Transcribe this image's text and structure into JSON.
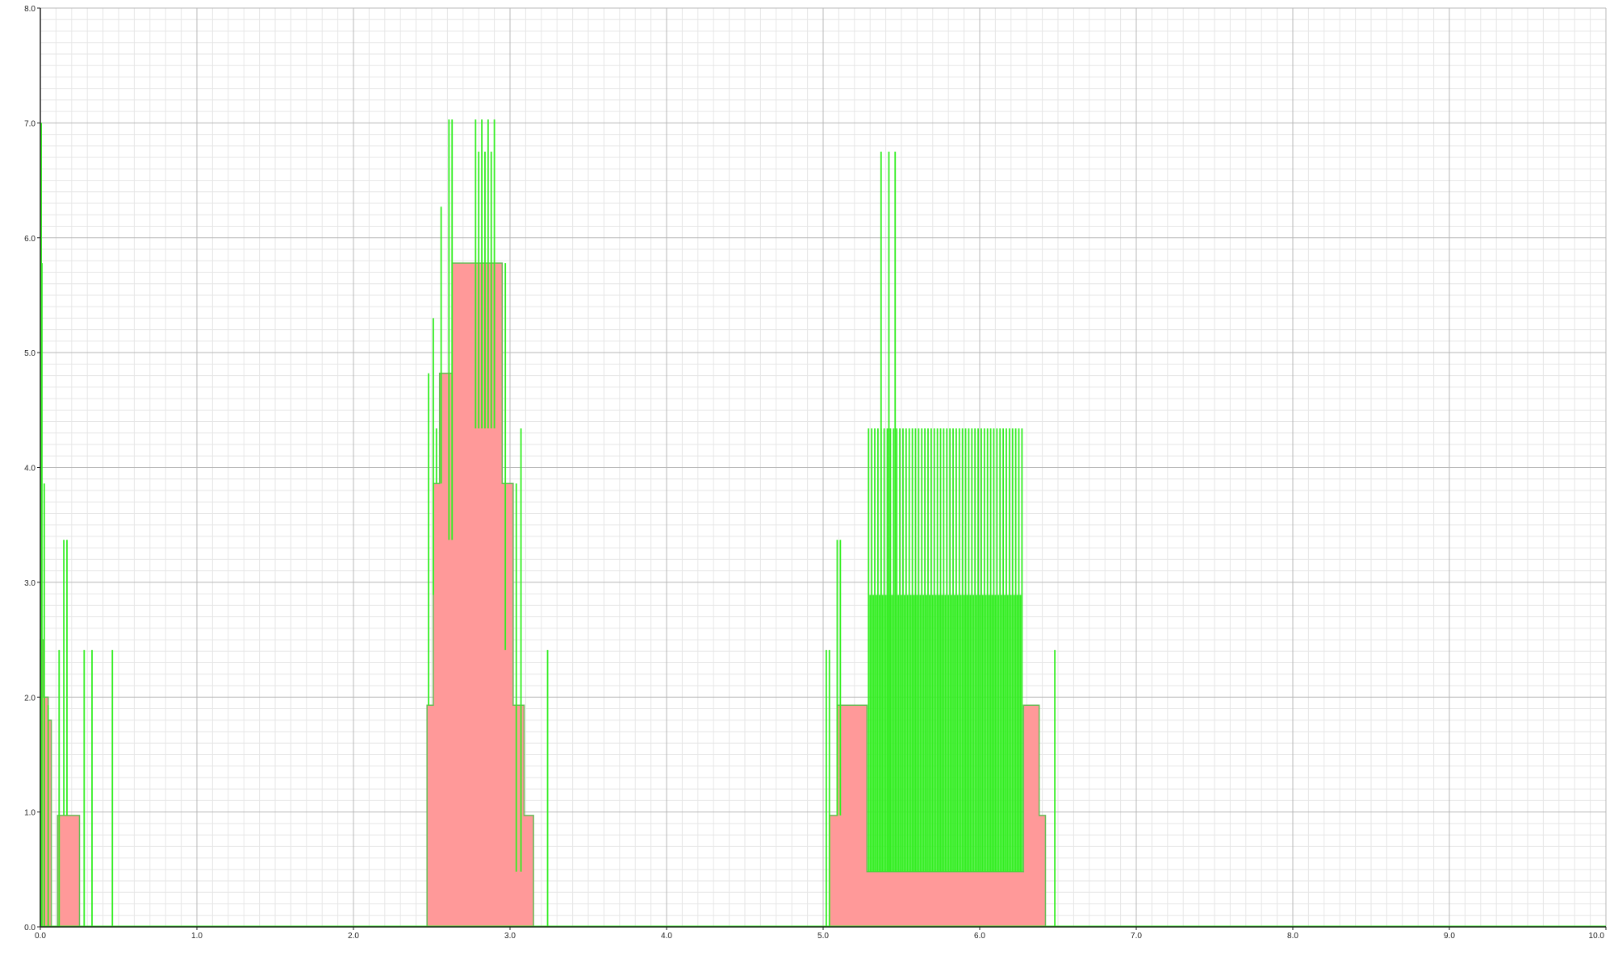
{
  "chart_data": {
    "type": "area",
    "title": "",
    "xlabel": "",
    "ylabel": "",
    "xlim": [
      0,
      10
    ],
    "ylim": [
      0,
      8
    ],
    "x_ticks": [
      "0.0",
      "1.0",
      "2.0",
      "3.0",
      "4.0",
      "5.0",
      "6.0",
      "7.0",
      "8.0",
      "9.0",
      "10.0"
    ],
    "y_ticks": [
      "0.0",
      "1.0",
      "2.0",
      "3.0",
      "4.0",
      "5.0",
      "6.0",
      "7.0",
      "8.0"
    ],
    "grid": true,
    "legend": "none",
    "series": [
      {
        "kind": "step-area",
        "color": "#ff9999",
        "stroke": "#66bb55",
        "points": [
          [
            0.0,
            2.5
          ],
          [
            0.02,
            2.0
          ],
          [
            0.05,
            1.8
          ],
          [
            0.07,
            0.0
          ],
          [
            0.11,
            0.97
          ],
          [
            0.25,
            0.0
          ],
          [
            2.47,
            1.93
          ],
          [
            2.51,
            3.86
          ],
          [
            2.55,
            4.82
          ],
          [
            2.63,
            5.78
          ],
          [
            2.95,
            3.86
          ],
          [
            3.02,
            1.93
          ],
          [
            3.09,
            0.97
          ],
          [
            3.15,
            0.0
          ],
          [
            5.04,
            0.97
          ],
          [
            5.09,
            1.93
          ],
          [
            5.28,
            0.48
          ],
          [
            6.28,
            1.93
          ],
          [
            6.38,
            0.97
          ],
          [
            6.42,
            0.0
          ],
          [
            10.0,
            0.0
          ]
        ]
      },
      {
        "kind": "spikes",
        "color": "#33ee22",
        "segments": [
          [
            0.005,
            0,
            7.0
          ],
          [
            0.01,
            0,
            5.78
          ],
          [
            0.025,
            0,
            3.86
          ],
          [
            0.05,
            0,
            1.93
          ],
          [
            0.12,
            0,
            2.41
          ],
          [
            0.15,
            0.97,
            3.37
          ],
          [
            0.17,
            0.97,
            3.37
          ],
          [
            0.28,
            0,
            2.41
          ],
          [
            0.33,
            0,
            2.41
          ],
          [
            0.46,
            0,
            2.41
          ],
          [
            2.48,
            1.93,
            4.82
          ],
          [
            2.51,
            2.89,
            5.3
          ],
          [
            2.53,
            3.86,
            4.34
          ],
          [
            2.56,
            3.86,
            6.27
          ],
          [
            2.61,
            3.37,
            7.03
          ],
          [
            2.63,
            3.37,
            7.03
          ],
          [
            2.78,
            4.34,
            7.03
          ],
          [
            2.8,
            4.34,
            6.75
          ],
          [
            2.82,
            4.34,
            7.03
          ],
          [
            2.84,
            4.34,
            6.75
          ],
          [
            2.86,
            4.34,
            7.03
          ],
          [
            2.88,
            4.34,
            6.75
          ],
          [
            2.9,
            4.34,
            7.03
          ],
          [
            2.97,
            2.41,
            5.78
          ],
          [
            3.04,
            0.48,
            3.86
          ],
          [
            3.07,
            0.48,
            4.34
          ],
          [
            3.24,
            0,
            2.41
          ],
          [
            5.02,
            0,
            2.41
          ],
          [
            5.04,
            0,
            2.41
          ],
          [
            5.09,
            0.97,
            3.37
          ],
          [
            5.11,
            0.97,
            3.37
          ],
          [
            5.37,
            0.48,
            6.75
          ],
          [
            5.42,
            0.48,
            6.75
          ],
          [
            5.46,
            0.48,
            6.75
          ],
          [
            6.48,
            0,
            2.41
          ]
        ],
        "dense_range": {
          "from": 5.29,
          "to": 6.27,
          "count": 50,
          "low": 0.48,
          "high": 4.34,
          "mid": 2.89
        }
      }
    ]
  }
}
